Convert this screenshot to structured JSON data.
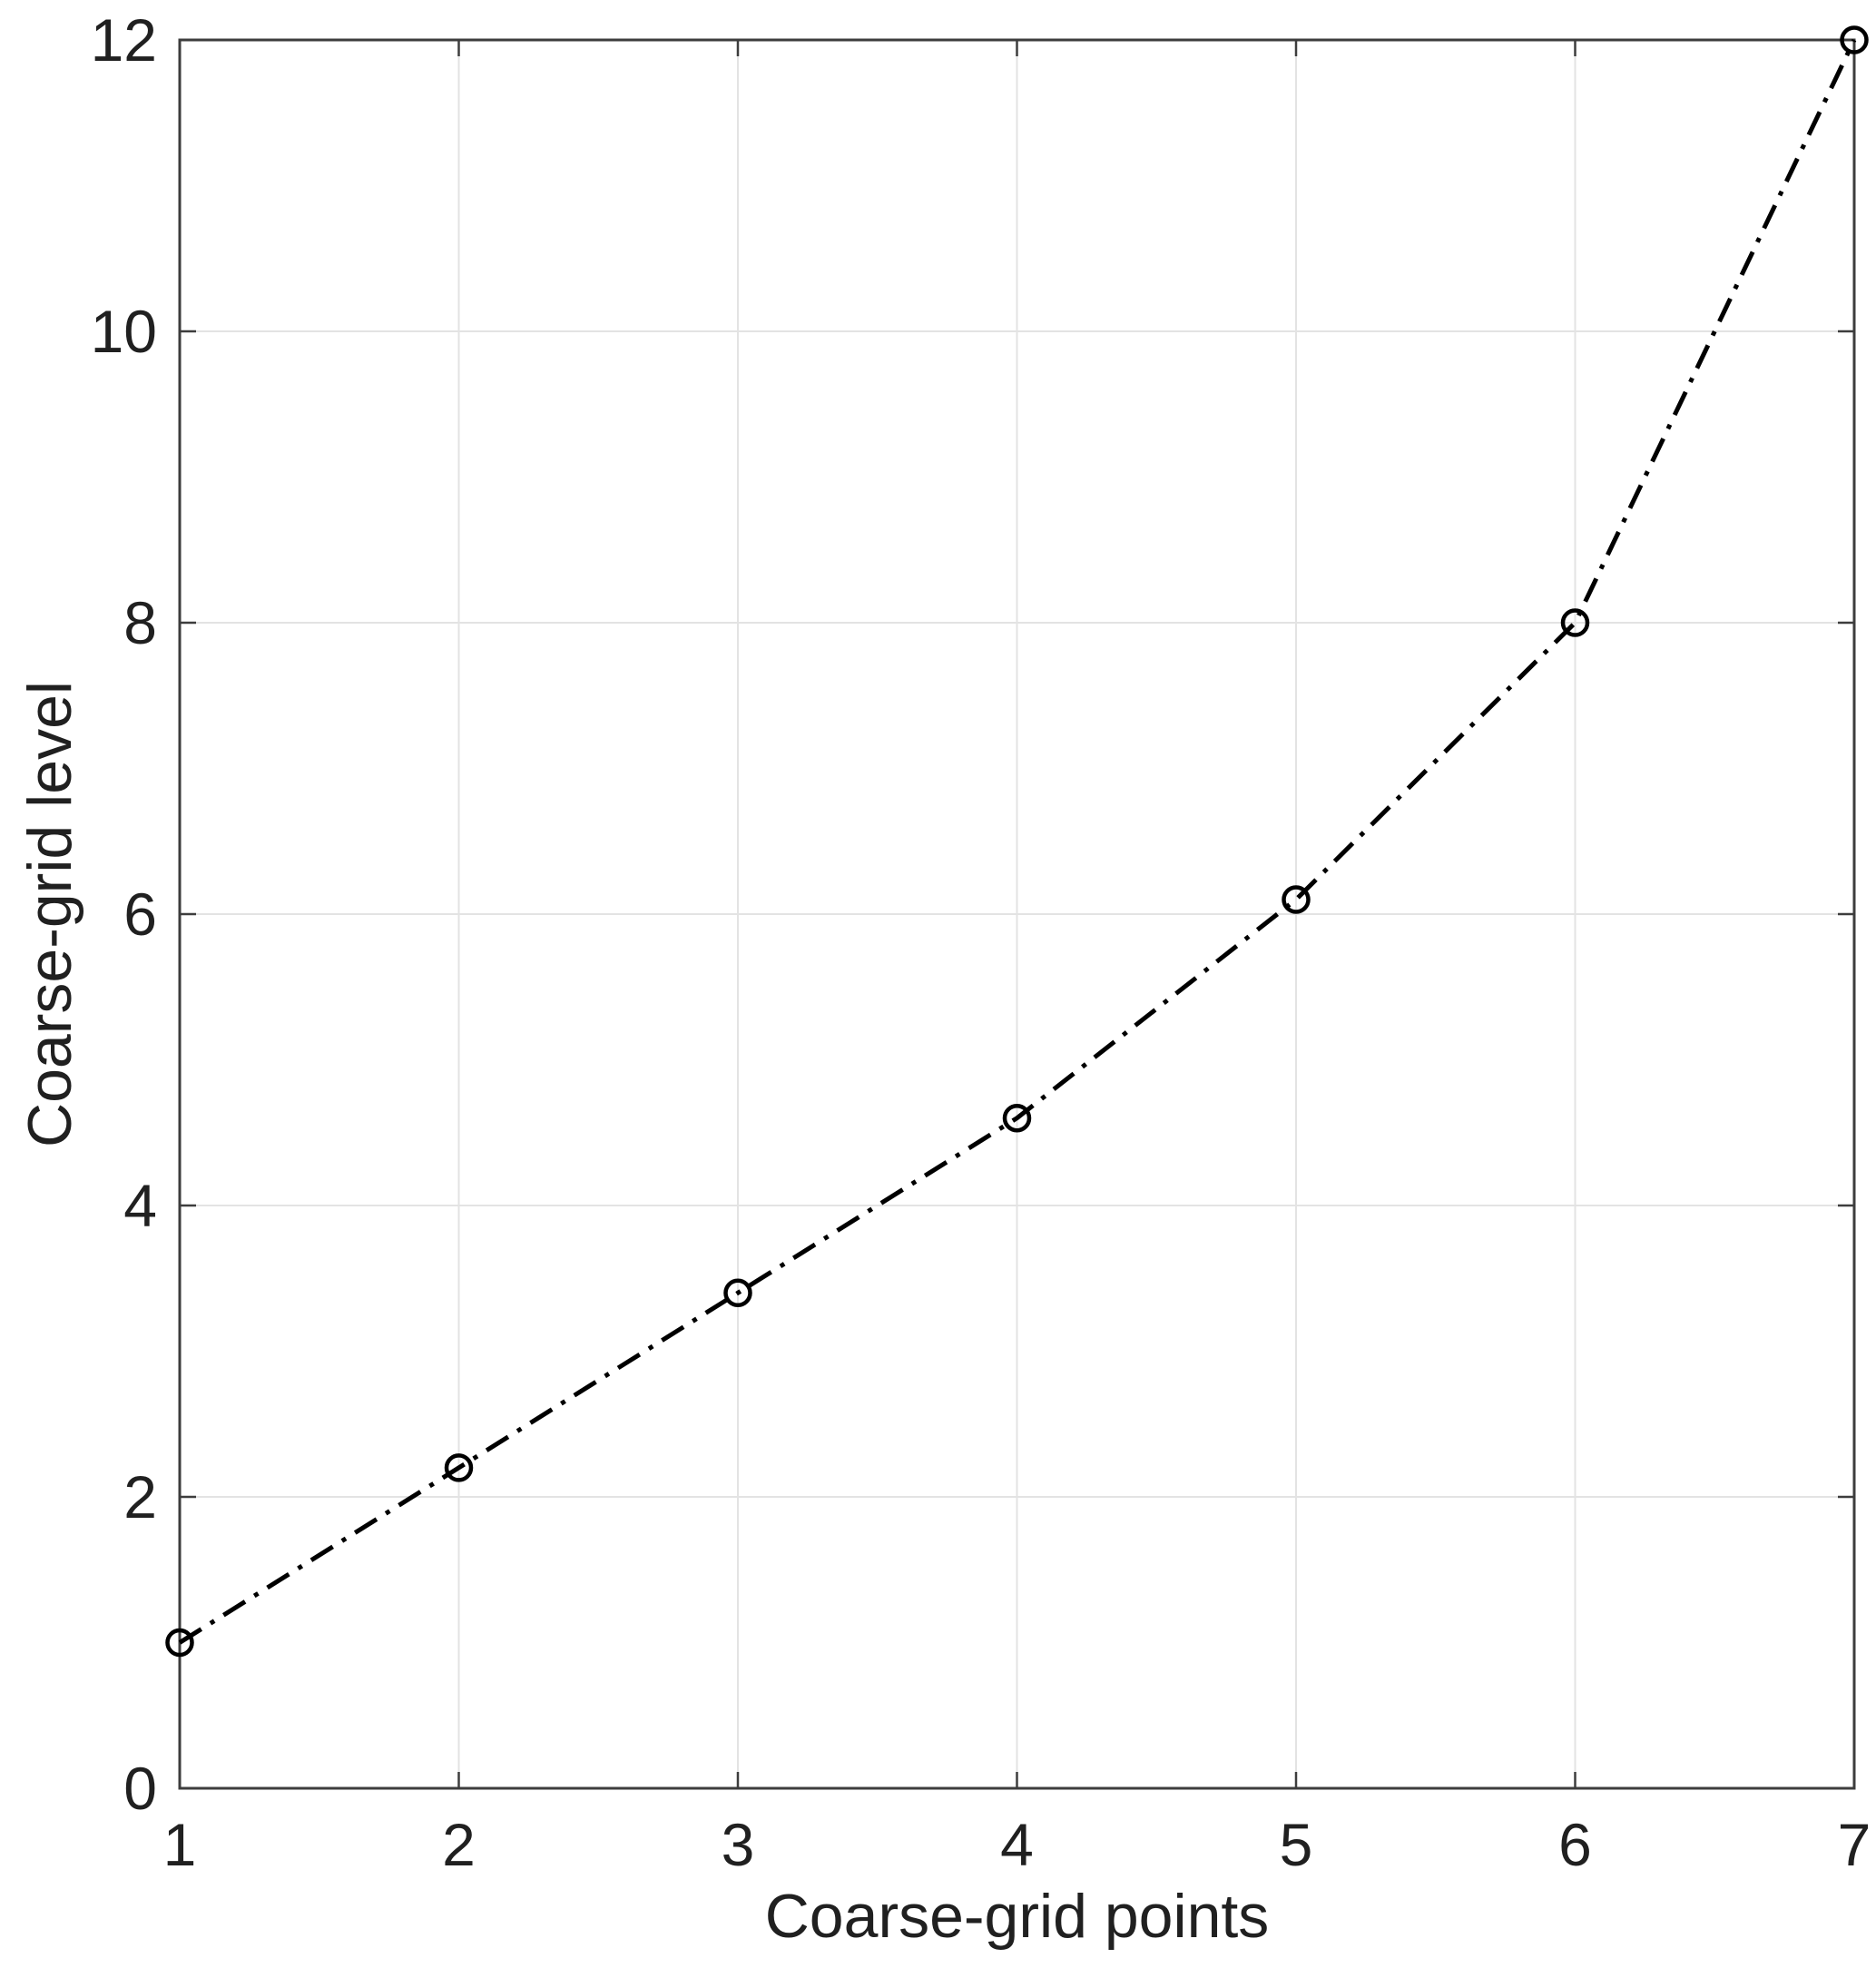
{
  "figure": {
    "background": "#ffffff"
  },
  "chart_data": {
    "type": "line",
    "title": "",
    "xlabel": "Coarse-grid points",
    "ylabel": "Coarse-grid level",
    "x": [
      1,
      2,
      3,
      4,
      5,
      6,
      7
    ],
    "series": [
      {
        "name": "coarse-grid-level",
        "values": [
          1,
          2.2,
          3.4,
          4.6,
          6.1,
          8,
          12
        ]
      }
    ],
    "xlim": [
      1,
      7
    ],
    "ylim": [
      0,
      12
    ],
    "x_ticks": [
      "1",
      "2",
      "3",
      "4",
      "5",
      "6",
      "7"
    ],
    "x_tick_values": [
      1,
      2,
      3,
      4,
      5,
      6,
      7
    ],
    "y_ticks": [
      "0",
      "2",
      "4",
      "6",
      "8",
      "10",
      "12"
    ],
    "y_tick_values": [
      0,
      2,
      4,
      6,
      8,
      10,
      12
    ],
    "grid": true,
    "legend_position": "none",
    "line_style": "dash-dot",
    "marker": "open-circle",
    "colors": {
      "line": "#000000",
      "grid": "#e3e3e3",
      "axis": "#3d3d3d",
      "text": "#202020",
      "background": "#ffffff"
    }
  }
}
